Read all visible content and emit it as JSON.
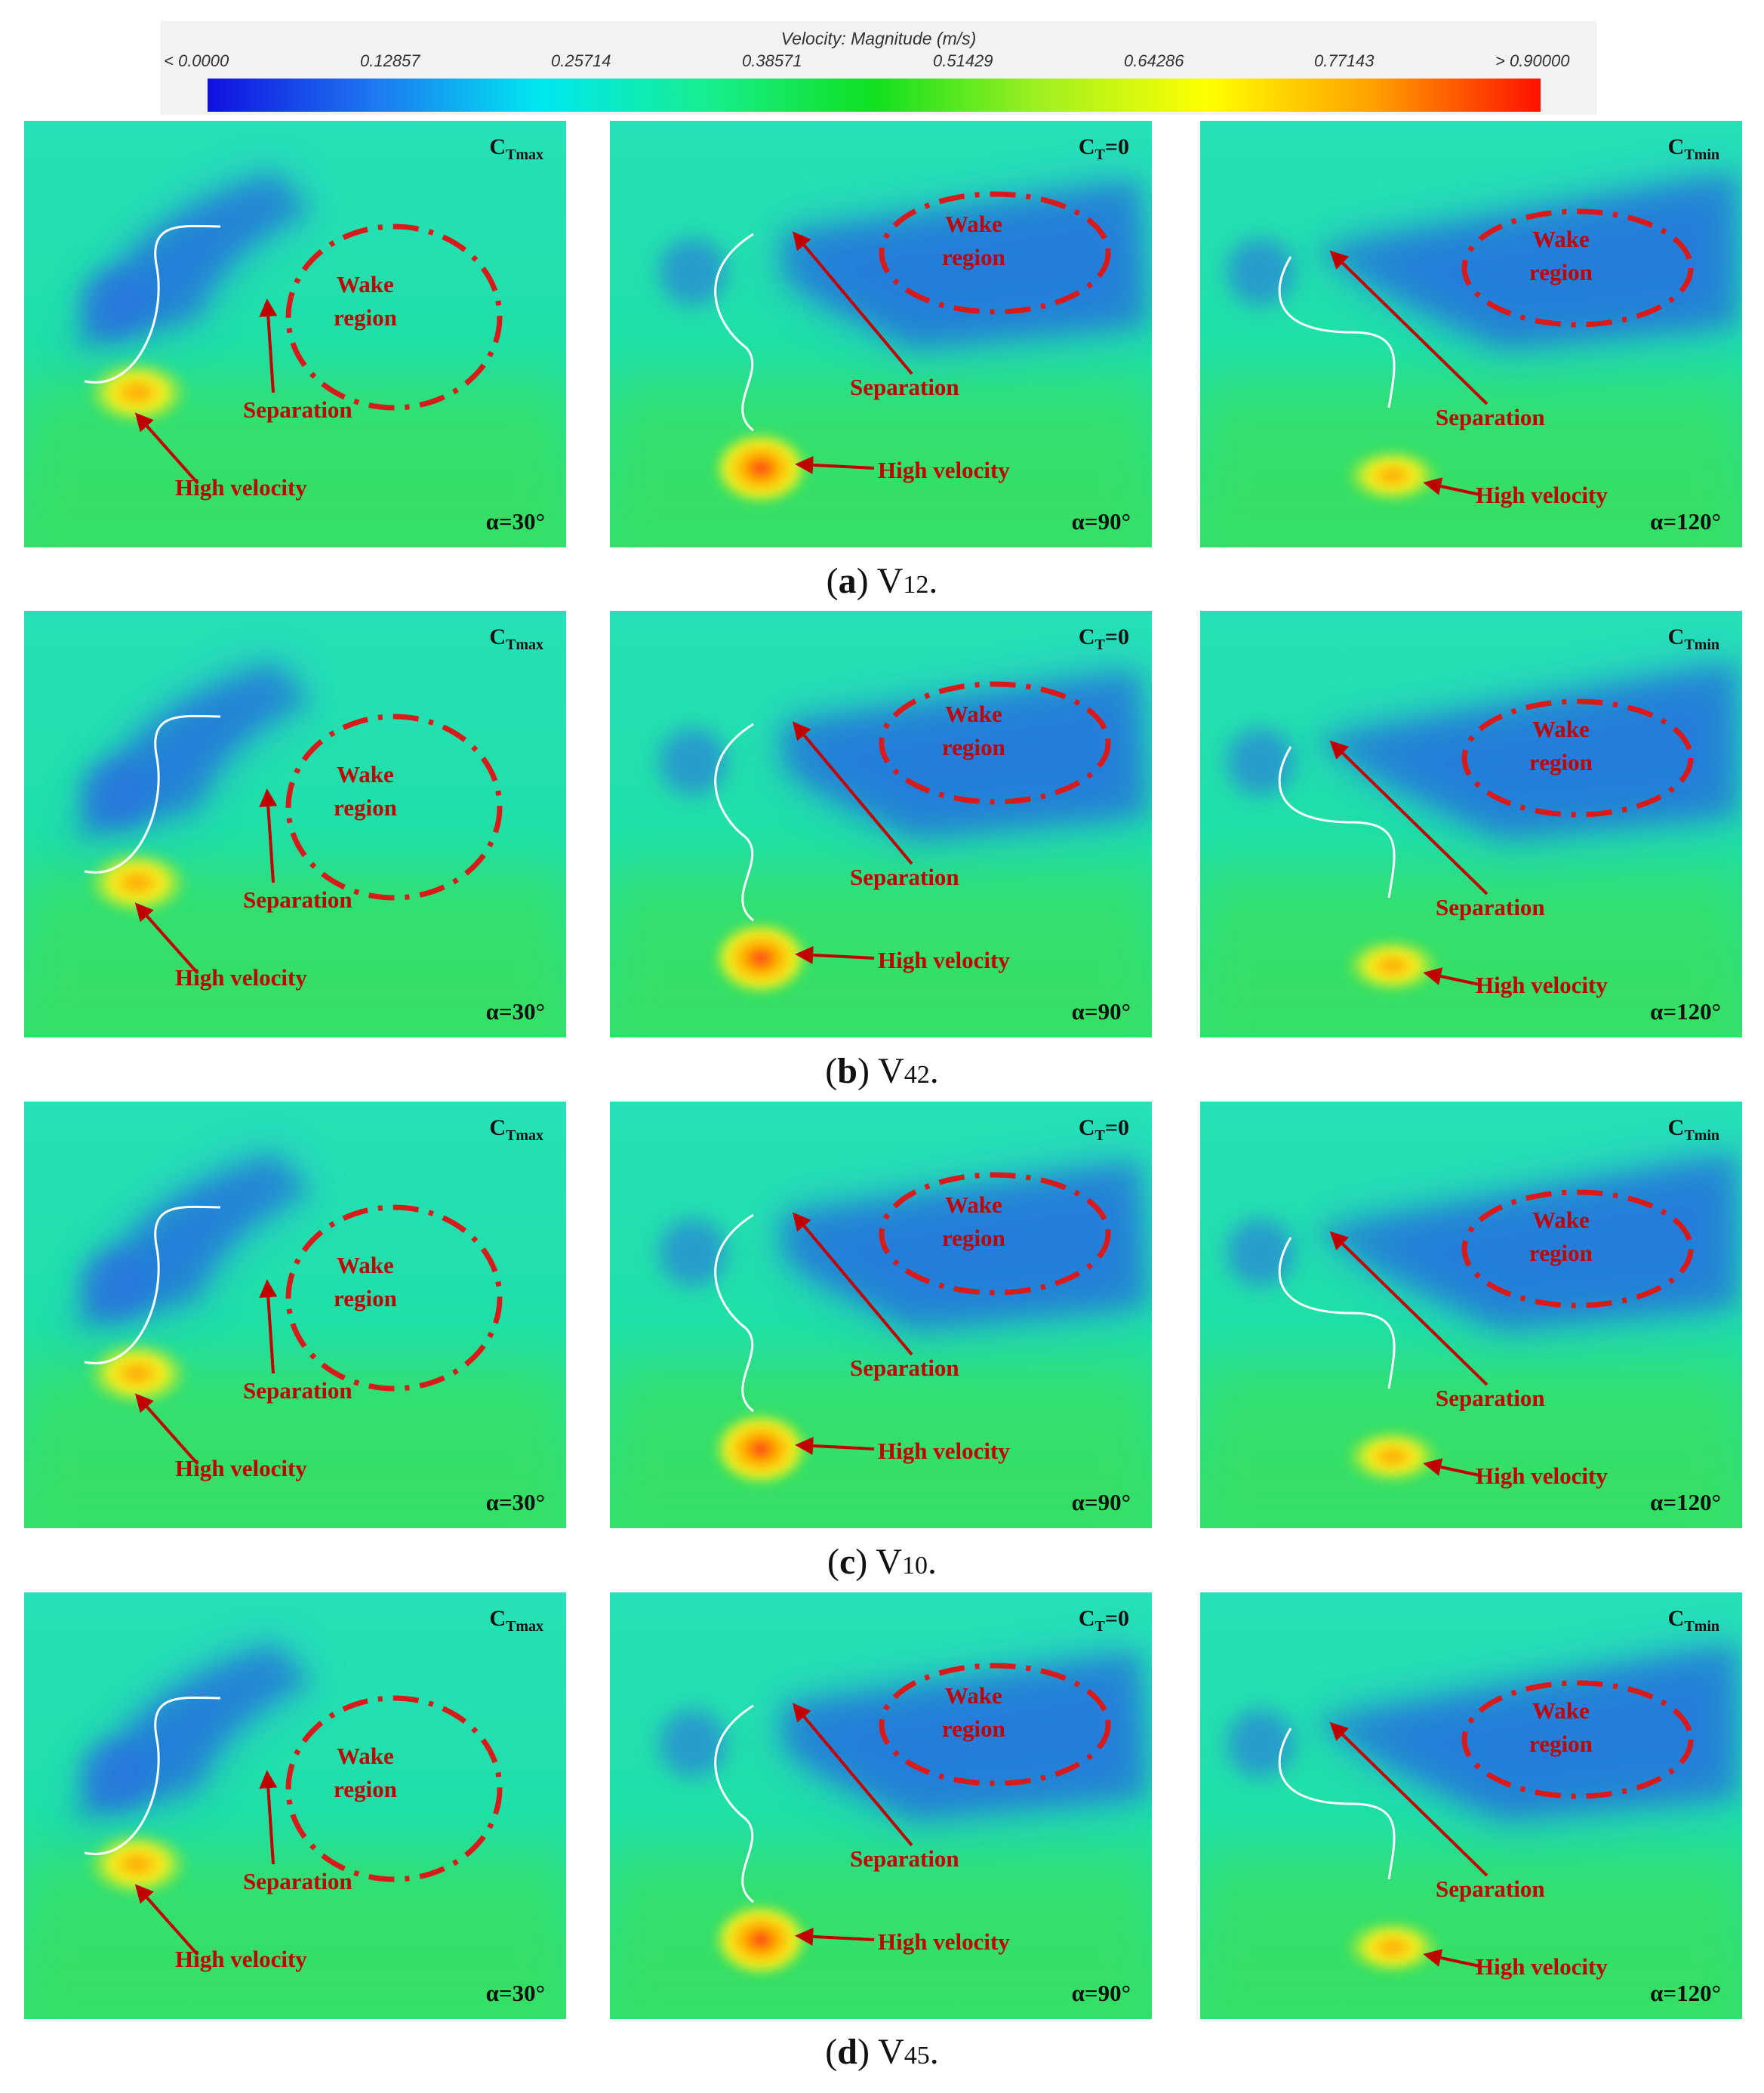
{
  "colorbar": {
    "title": "Velocity: Magnitude (m/s)",
    "ticks": [
      "< 0.0000",
      "0.12857",
      "0.25714",
      "0.38571",
      "0.51429",
      "0.64286",
      "0.77143",
      "> 0.90000"
    ],
    "colors": [
      "#1010e0",
      "#1e78f0",
      "#00e8f0",
      "#18ee90",
      "#10e020",
      "#a0f020",
      "#ffff00",
      "#ffa000",
      "#ff1000"
    ]
  },
  "labels": {
    "wake_line1": "Wake",
    "wake_line2": "region",
    "separation": "Separation",
    "high_velocity": "High velocity"
  },
  "rows": [
    {
      "caption": {
        "letter": "a",
        "name": "V",
        "sub": "12",
        "end": "."
      },
      "panels": [
        {
          "ct_main": "C",
          "ct_sub": "Tmax",
          "ct_suffix": "",
          "alpha": "α=30°"
        },
        {
          "ct_main": "C",
          "ct_sub": "T",
          "ct_suffix": "=0",
          "alpha": "α=90°"
        },
        {
          "ct_main": "C",
          "ct_sub": "Tmin",
          "ct_suffix": "",
          "alpha": "α=120°"
        }
      ]
    },
    {
      "caption": {
        "letter": "b",
        "name": "V",
        "sub": "42",
        "end": "."
      },
      "panels": [
        {
          "ct_main": "C",
          "ct_sub": "Tmax",
          "ct_suffix": "",
          "alpha": "α=30°"
        },
        {
          "ct_main": "C",
          "ct_sub": "T",
          "ct_suffix": "=0",
          "alpha": "α=90°"
        },
        {
          "ct_main": "C",
          "ct_sub": "Tmin",
          "ct_suffix": "",
          "alpha": "α=120°"
        }
      ]
    },
    {
      "caption": {
        "letter": "c",
        "name": "V",
        "sub": "10",
        "end": "."
      },
      "panels": [
        {
          "ct_main": "C",
          "ct_sub": "Tmax",
          "ct_suffix": "",
          "alpha": "α=30°"
        },
        {
          "ct_main": "C",
          "ct_sub": "T",
          "ct_suffix": "=0",
          "alpha": "α=90°"
        },
        {
          "ct_main": "C",
          "ct_sub": "Tmin",
          "ct_suffix": "",
          "alpha": "α=120°"
        }
      ]
    },
    {
      "caption": {
        "letter": "d",
        "name": "V",
        "sub": "45",
        "end": "."
      },
      "panels": [
        {
          "ct_main": "C",
          "ct_sub": "Tmax",
          "ct_suffix": "",
          "alpha": "α=30°"
        },
        {
          "ct_main": "C",
          "ct_sub": "T",
          "ct_suffix": "=0",
          "alpha": "α=90°"
        },
        {
          "ct_main": "C",
          "ct_sub": "Tmin",
          "ct_suffix": "",
          "alpha": "α=120°"
        }
      ]
    }
  ]
}
